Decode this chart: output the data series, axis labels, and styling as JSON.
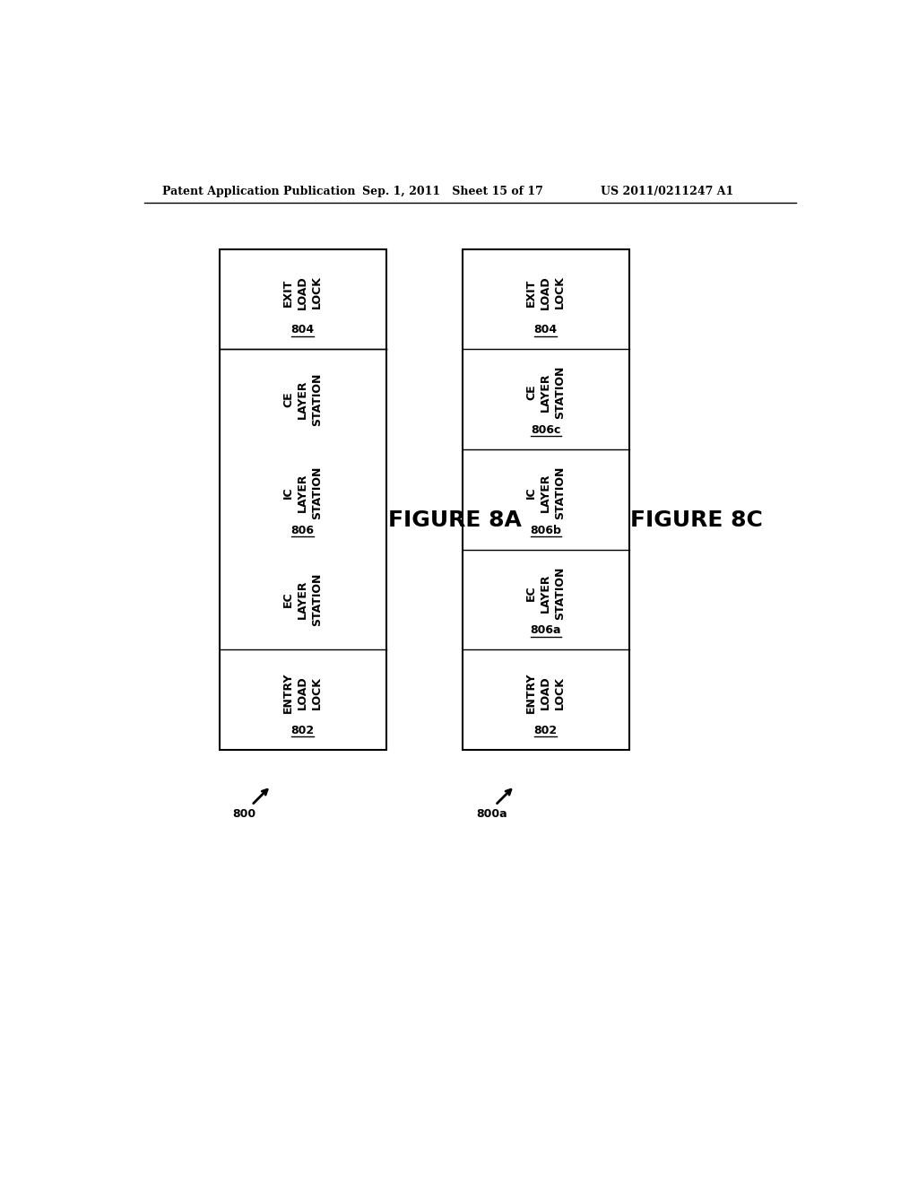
{
  "bg_color": "#ffffff",
  "header_left": "Patent Application Publication",
  "header_mid": "Sep. 1, 2011   Sheet 15 of 17",
  "header_right": "US 2011/0211247 A1",
  "fig8a_label": "FIGURE 8A",
  "fig8c_label": "FIGURE 8C",
  "diagram_left": {
    "arrow_label": "800",
    "cells_top_to_bottom": [
      {
        "lines": [
          "EXIT",
          "LOAD",
          "LOCK"
        ],
        "ref": "804",
        "has_border": true
      },
      {
        "lines": [
          "CE",
          "LAYER",
          "STATION"
        ],
        "ref": "",
        "has_border": false
      },
      {
        "lines": [
          "IC",
          "LAYER",
          "STATION"
        ],
        "ref": "806",
        "has_border": false
      },
      {
        "lines": [
          "EC",
          "LAYER",
          "STATION"
        ],
        "ref": "",
        "has_border": false
      },
      {
        "lines": [
          "ENTRY",
          "LOAD",
          "LOCK"
        ],
        "ref": "802",
        "has_border": true
      }
    ]
  },
  "diagram_right": {
    "arrow_label": "800a",
    "cells_top_to_bottom": [
      {
        "lines": [
          "EXIT",
          "LOAD",
          "LOCK"
        ],
        "ref": "804",
        "has_border": true
      },
      {
        "lines": [
          "CE",
          "LAYER",
          "STATION"
        ],
        "ref": "806c",
        "has_border": true
      },
      {
        "lines": [
          "IC",
          "LAYER",
          "STATION"
        ],
        "ref": "806b",
        "has_border": true
      },
      {
        "lines": [
          "EC",
          "LAYER",
          "STATION"
        ],
        "ref": "806a",
        "has_border": true
      },
      {
        "lines": [
          "ENTRY",
          "LOAD",
          "LOCK"
        ],
        "ref": "802",
        "has_border": true
      }
    ]
  }
}
